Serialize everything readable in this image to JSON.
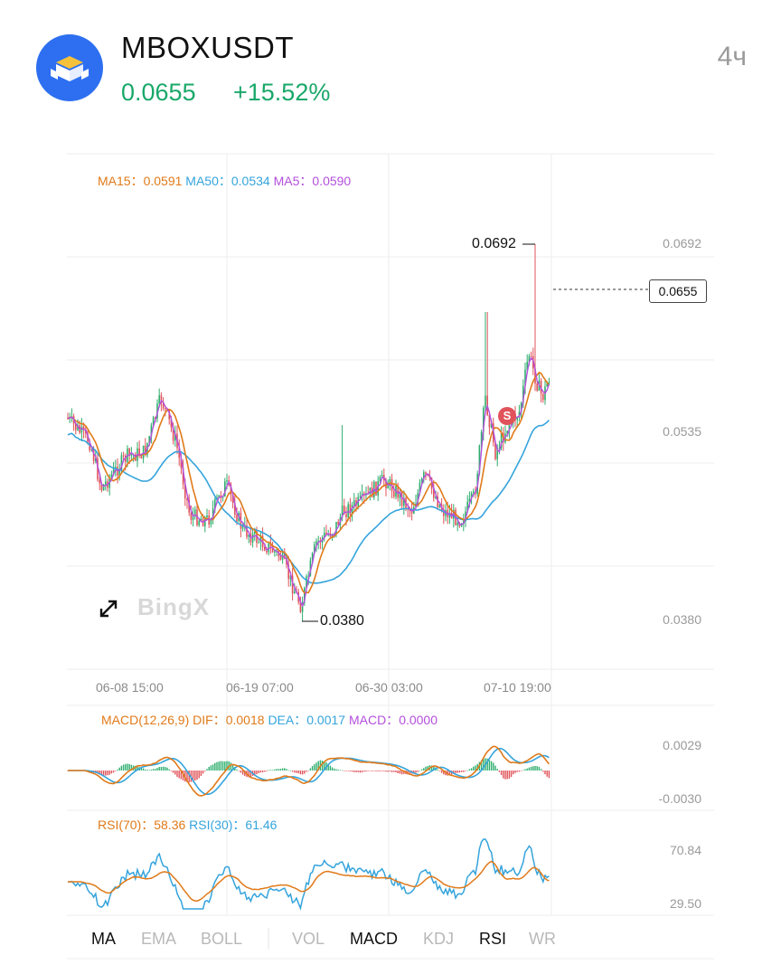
{
  "header": {
    "symbol": "MBOXUSDT",
    "price": "0.0655",
    "change": "+15.52%",
    "timeframe": "4ч",
    "logo_icon": "mbox-logo-icon",
    "up_color": "#1aa86a"
  },
  "main_chart": {
    "legend": {
      "ma15_label": "MA15：",
      "ma15_value": "0.0591",
      "ma50_label": "MA50：",
      "ma50_value": "0.0534",
      "ma5_label": "MA5：",
      "ma5_value": "0.0590"
    },
    "y_ticks": [
      "0.0692",
      "0.0535",
      "0.0380"
    ],
    "x_ticks": [
      "06-08 15:00",
      "06-19 07:00",
      "06-30 03:00",
      "07-10 19:00"
    ],
    "high_label": "0.0692",
    "low_label": "0.0380",
    "current_price": "0.0655",
    "sell_marker": "S",
    "watermark": "BingX",
    "expand_icon": "expand-icon"
  },
  "macd_panel": {
    "legend": {
      "title": "MACD(12,26,9)",
      "dif_label": "DIF：",
      "dif_value": "0.0018",
      "dea_label": "DEA：",
      "dea_value": "0.0017",
      "macd_label": "MACD：",
      "macd_value": "0.0000"
    },
    "y_ticks": [
      "0.0029",
      "-0.0030"
    ]
  },
  "rsi_panel": {
    "legend": {
      "rsi70_label": "RSI(70)：",
      "rsi70_value": "58.36",
      "rsi30_label": "RSI(30)：",
      "rsi30_value": "61.46"
    },
    "y_ticks": [
      "70.84",
      "29.50"
    ]
  },
  "tabs": {
    "ma": "MA",
    "ema": "EMA",
    "boll": "BOLL",
    "vol": "VOL",
    "macd": "MACD",
    "kdj": "KDJ",
    "rsi": "RSI",
    "wr": "WR"
  },
  "colors": {
    "up": "#2fae6e",
    "down": "#e0535a",
    "ma15": "#e07a1a",
    "ma50": "#35a4dc",
    "ma5": "#b44fdc"
  }
}
